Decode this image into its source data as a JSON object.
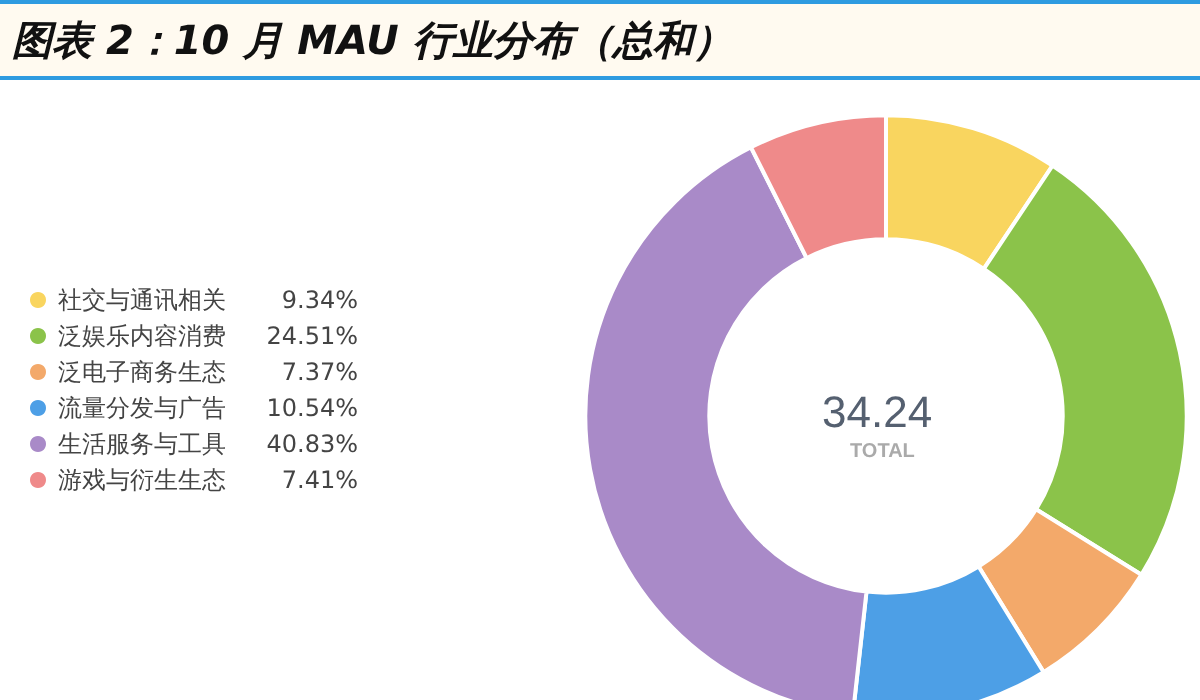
{
  "chart_data": {
    "type": "donut",
    "title": "图表 2：10 月 MAU 行业分布（总和）",
    "categories": [
      "社交与通讯相关",
      "泛娱乐内容消费",
      "泛电子商务生态",
      "流量分发与广告",
      "生活服务与工具",
      "游戏与衍生生态"
    ],
    "values": [
      9.34,
      24.51,
      7.37,
      10.54,
      40.83,
      7.41
    ],
    "value_labels": [
      "9.34%",
      "24.51%",
      "7.37%",
      "10.54%",
      "40.83%",
      "7.41%"
    ],
    "colors": [
      "#f9d55f",
      "#8bc34a",
      "#f3a96a",
      "#4d9fe6",
      "#a98ac8",
      "#ef8a8a"
    ],
    "annotations": [
      "34.24",
      "TOTAL"
    ],
    "legend": "left"
  }
}
